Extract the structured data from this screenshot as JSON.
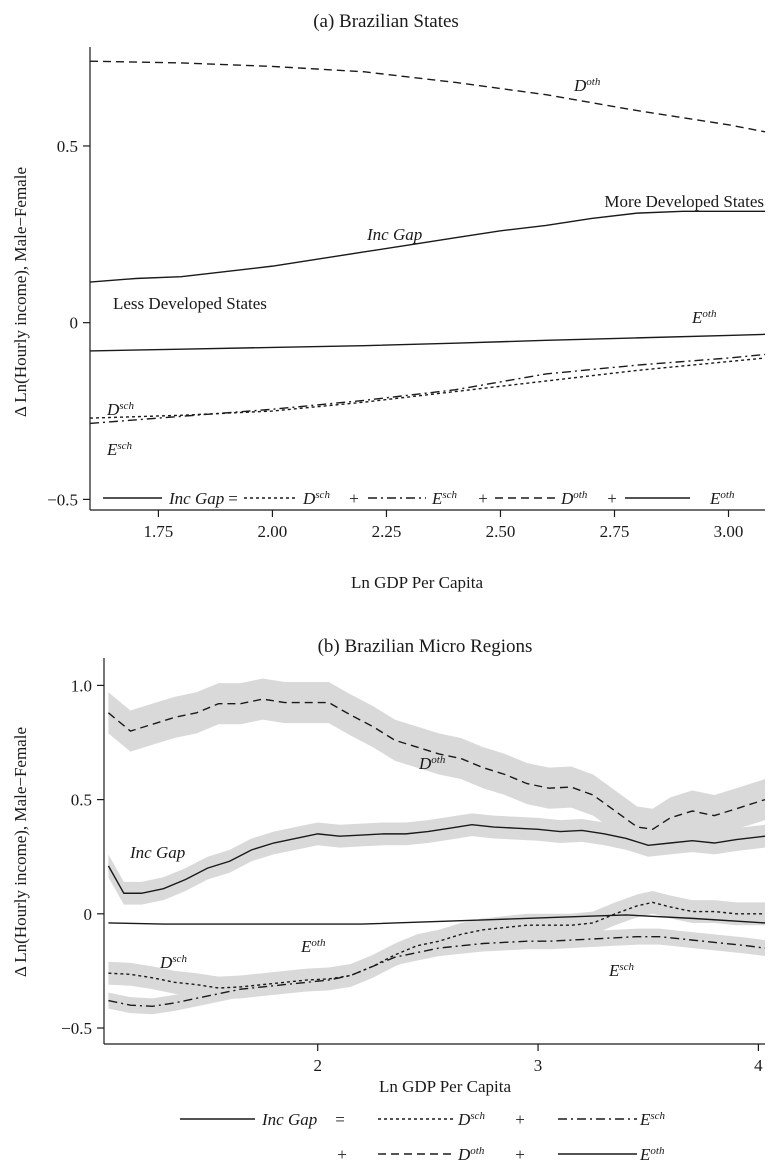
{
  "chart_data": [
    {
      "type": "line",
      "title": "(a) Brazilian States",
      "xlabel": "Ln GDP Per Capita",
      "ylabel": "Δ Ln(Hourly income), Male−Female",
      "xlim": [
        1.6,
        3.08
      ],
      "ylim": [
        -0.53,
        0.78
      ],
      "xticks": [
        "1.75",
        "2.00",
        "2.25",
        "2.50",
        "2.75",
        "3.00"
      ],
      "yticks": [
        "0.5",
        "0",
        "−0.5"
      ],
      "annotations": [
        "More Developed States",
        "Less Developed States"
      ],
      "legend": {
        "placement": "bottom-inside",
        "eq": "=",
        "plus": "+",
        "items": [
          "Inc Gap",
          "D",
          "E",
          "D",
          "E"
        ],
        "sup": [
          "",
          "sch",
          "sch",
          "oth",
          "oth"
        ]
      },
      "series": [
        {
          "name": "D",
          "sup": "oth",
          "dash": "long",
          "x": [
            1.6,
            1.8,
            2.0,
            2.2,
            2.4,
            2.6,
            2.8,
            3.0,
            3.08
          ],
          "y": [
            0.74,
            0.735,
            0.725,
            0.71,
            0.68,
            0.645,
            0.6,
            0.56,
            0.54
          ]
        },
        {
          "name": "Inc Gap",
          "sup": "",
          "dash": "solid",
          "x": [
            1.6,
            1.7,
            1.8,
            1.9,
            2.0,
            2.1,
            2.2,
            2.3,
            2.4,
            2.5,
            2.6,
            2.7,
            2.8,
            2.9,
            3.0,
            3.08
          ],
          "y": [
            0.115,
            0.125,
            0.13,
            0.145,
            0.16,
            0.18,
            0.2,
            0.22,
            0.24,
            0.26,
            0.275,
            0.295,
            0.31,
            0.315,
            0.315,
            0.315
          ]
        },
        {
          "name": "E",
          "sup": "oth",
          "dash": "solid",
          "x": [
            1.6,
            1.8,
            2.0,
            2.2,
            2.4,
            2.6,
            2.8,
            3.0,
            3.08
          ],
          "y": [
            -0.08,
            -0.075,
            -0.07,
            -0.065,
            -0.058,
            -0.05,
            -0.043,
            -0.036,
            -0.033
          ]
        },
        {
          "name": "D",
          "sup": "sch",
          "dash": "short",
          "x": [
            1.6,
            1.8,
            2.0,
            2.2,
            2.4,
            2.6,
            2.8,
            3.0,
            3.08
          ],
          "y": [
            -0.27,
            -0.262,
            -0.25,
            -0.225,
            -0.195,
            -0.165,
            -0.135,
            -0.11,
            -0.1
          ]
        },
        {
          "name": "E",
          "sup": "sch",
          "dash": "dashdot",
          "x": [
            1.6,
            1.8,
            2.0,
            2.2,
            2.4,
            2.6,
            2.8,
            3.0,
            3.08
          ],
          "y": [
            -0.285,
            -0.265,
            -0.245,
            -0.22,
            -0.19,
            -0.145,
            -0.12,
            -0.1,
            -0.09
          ]
        }
      ]
    },
    {
      "type": "line",
      "title": "(b) Brazilian Micro Regions",
      "xlabel": "Ln GDP Per Capita",
      "ylabel": "Δ Ln(Hourly income), Male−Female",
      "xlim": [
        1.03,
        4.03
      ],
      "ylim": [
        -0.57,
        1.12
      ],
      "xticks": [
        "2",
        "3",
        "4"
      ],
      "yticks": [
        "1.0",
        "0.5",
        "0",
        "−0.5"
      ],
      "legend": {
        "placement": "below-axes",
        "eq": "=",
        "plus": "+",
        "items": [
          "Inc Gap",
          "D",
          "E",
          "D",
          "E"
        ],
        "sup": [
          "",
          "sch",
          "sch",
          "oth",
          "oth"
        ]
      },
      "series": [
        {
          "name": "D",
          "sup": "oth",
          "dash": "long",
          "band": 0.09,
          "x": [
            1.05,
            1.15,
            1.25,
            1.35,
            1.45,
            1.55,
            1.65,
            1.75,
            1.85,
            1.95,
            2.05,
            2.15,
            2.25,
            2.35,
            2.45,
            2.55,
            2.65,
            2.75,
            2.85,
            2.95,
            3.05,
            3.15,
            3.25,
            3.35,
            3.45,
            3.52,
            3.6,
            3.7,
            3.8,
            3.9,
            4.03
          ],
          "y": [
            0.88,
            0.8,
            0.83,
            0.86,
            0.88,
            0.92,
            0.92,
            0.94,
            0.925,
            0.925,
            0.925,
            0.87,
            0.82,
            0.76,
            0.73,
            0.7,
            0.68,
            0.64,
            0.61,
            0.57,
            0.55,
            0.555,
            0.52,
            0.45,
            0.38,
            0.37,
            0.42,
            0.45,
            0.43,
            0.46,
            0.5
          ]
        },
        {
          "name": "Inc Gap",
          "sup": "",
          "dash": "solid",
          "band": 0.05,
          "x": [
            1.05,
            1.12,
            1.2,
            1.3,
            1.4,
            1.5,
            1.6,
            1.7,
            1.8,
            1.9,
            2.0,
            2.1,
            2.2,
            2.3,
            2.4,
            2.5,
            2.6,
            2.7,
            2.8,
            2.9,
            3.0,
            3.1,
            3.2,
            3.3,
            3.4,
            3.5,
            3.6,
            3.7,
            3.8,
            3.9,
            4.03
          ],
          "y": [
            0.21,
            0.09,
            0.09,
            0.11,
            0.15,
            0.2,
            0.23,
            0.28,
            0.31,
            0.33,
            0.35,
            0.34,
            0.345,
            0.35,
            0.35,
            0.36,
            0.375,
            0.39,
            0.38,
            0.375,
            0.37,
            0.36,
            0.365,
            0.35,
            0.33,
            0.3,
            0.31,
            0.32,
            0.31,
            0.325,
            0.34
          ]
        },
        {
          "name": "E",
          "sup": "oth",
          "dash": "solid",
          "band": 0,
          "x": [
            1.05,
            1.3,
            1.6,
            1.9,
            2.2,
            2.5,
            2.8,
            3.1,
            3.4,
            3.7,
            4.03
          ],
          "y": [
            -0.04,
            -0.045,
            -0.045,
            -0.045,
            -0.045,
            -0.035,
            -0.025,
            -0.015,
            -0.005,
            -0.02,
            -0.04
          ]
        },
        {
          "name": "D",
          "sup": "sch",
          "dash": "short",
          "band": 0.05,
          "x": [
            1.05,
            1.15,
            1.25,
            1.35,
            1.45,
            1.55,
            1.65,
            1.75,
            1.85,
            1.95,
            2.05,
            2.15,
            2.25,
            2.35,
            2.45,
            2.55,
            2.65,
            2.75,
            2.85,
            2.95,
            3.05,
            3.15,
            3.25,
            3.35,
            3.45,
            3.52,
            3.6,
            3.7,
            3.8,
            3.9,
            4.03
          ],
          "y": [
            -0.26,
            -0.265,
            -0.28,
            -0.3,
            -0.31,
            -0.325,
            -0.32,
            -0.31,
            -0.3,
            -0.29,
            -0.285,
            -0.27,
            -0.23,
            -0.18,
            -0.14,
            -0.12,
            -0.09,
            -0.07,
            -0.06,
            -0.05,
            -0.05,
            -0.05,
            -0.04,
            0.0,
            0.035,
            0.05,
            0.03,
            0.01,
            0.01,
            0.0,
            0.0
          ]
        },
        {
          "name": "E",
          "sup": "sch",
          "dash": "dashdot",
          "band": 0.035,
          "x": [
            1.05,
            1.15,
            1.25,
            1.35,
            1.45,
            1.55,
            1.65,
            1.75,
            1.85,
            1.95,
            2.05,
            2.15,
            2.25,
            2.35,
            2.45,
            2.55,
            2.65,
            2.75,
            2.85,
            2.95,
            3.05,
            3.15,
            3.25,
            3.35,
            3.45,
            3.55,
            3.65,
            3.75,
            3.85,
            3.95,
            4.03
          ],
          "y": [
            -0.38,
            -0.4,
            -0.405,
            -0.39,
            -0.37,
            -0.35,
            -0.33,
            -0.32,
            -0.31,
            -0.3,
            -0.29,
            -0.27,
            -0.23,
            -0.19,
            -0.17,
            -0.15,
            -0.14,
            -0.13,
            -0.125,
            -0.12,
            -0.12,
            -0.115,
            -0.11,
            -0.105,
            -0.1,
            -0.1,
            -0.11,
            -0.12,
            -0.13,
            -0.14,
            -0.15
          ]
        }
      ]
    }
  ]
}
